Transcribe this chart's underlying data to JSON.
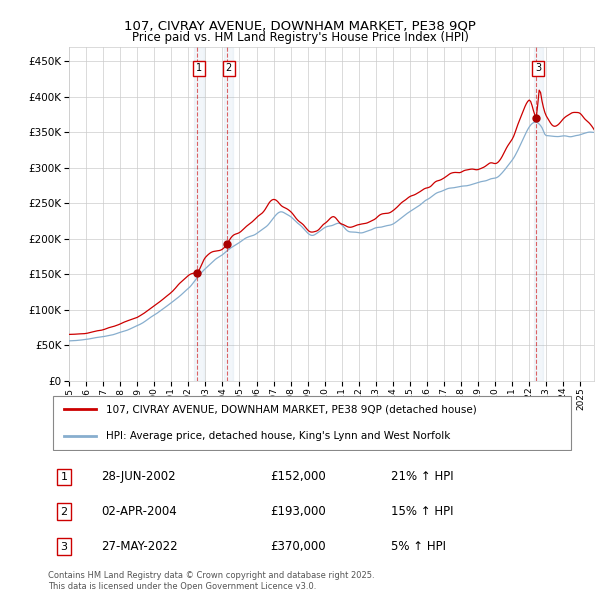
{
  "title": "107, CIVRAY AVENUE, DOWNHAM MARKET, PE38 9QP",
  "subtitle": "Price paid vs. HM Land Registry's House Price Index (HPI)",
  "ytick_values": [
    0,
    50000,
    100000,
    150000,
    200000,
    250000,
    300000,
    350000,
    400000,
    450000
  ],
  "ylim": [
    0,
    470000
  ],
  "xlim_start": 1995.0,
  "xlim_end": 2025.8,
  "hpi_color": "#87AECE",
  "price_color": "#CC0000",
  "dot_color": "#AA0000",
  "background_color": "#ffffff",
  "grid_color": "#cccccc",
  "legend_entries": [
    "107, CIVRAY AVENUE, DOWNHAM MARKET, PE38 9QP (detached house)",
    "HPI: Average price, detached house, King's Lynn and West Norfolk"
  ],
  "transactions": [
    {
      "num": 1,
      "date": "28-JUN-2002",
      "price": 152000,
      "pct": "21%",
      "dir": "↑",
      "year": 2002.5
    },
    {
      "num": 2,
      "date": "02-APR-2004",
      "price": 193000,
      "pct": "15%",
      "dir": "↑",
      "year": 2004.25
    },
    {
      "num": 3,
      "date": "27-MAY-2022",
      "price": 370000,
      "pct": "5%",
      "dir": "↑",
      "year": 2022.41
    }
  ],
  "footer": "Contains HM Land Registry data © Crown copyright and database right 2025.\nThis data is licensed under the Open Government Licence v3.0.",
  "xtick_years": [
    1995,
    1996,
    1997,
    1998,
    1999,
    2000,
    2001,
    2002,
    2003,
    2004,
    2005,
    2006,
    2007,
    2008,
    2009,
    2010,
    2011,
    2012,
    2013,
    2014,
    2015,
    2016,
    2017,
    2018,
    2019,
    2020,
    2021,
    2022,
    2023,
    2024,
    2025
  ]
}
